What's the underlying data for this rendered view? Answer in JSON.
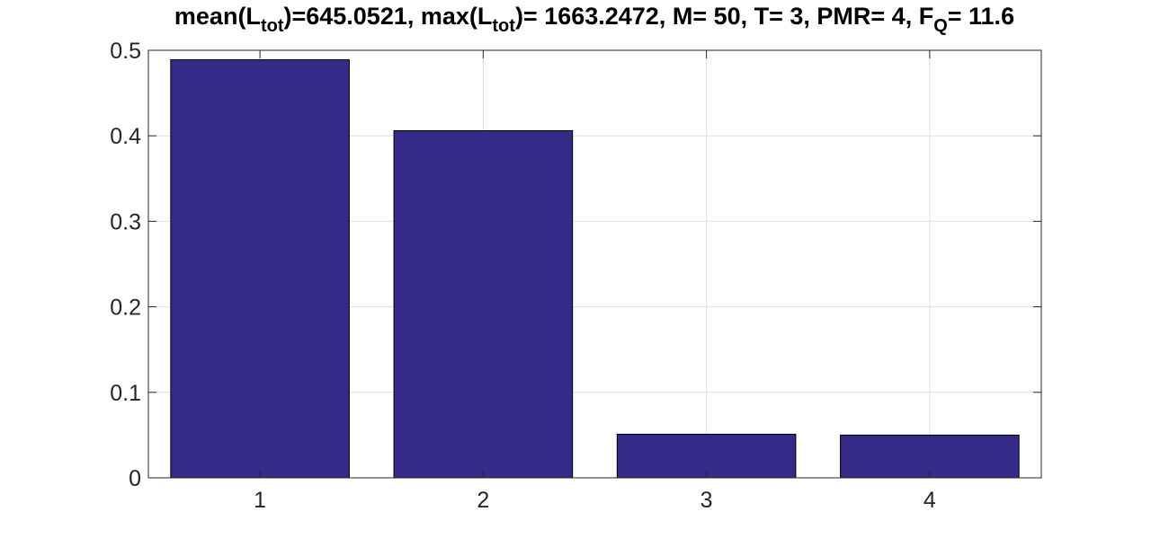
{
  "chart_data": {
    "type": "bar",
    "title_parts": [
      {
        "text": "mean(L"
      },
      {
        "text": "tot",
        "sub": true
      },
      {
        "text": ")=645.0521, max(L"
      },
      {
        "text": "tot",
        "sub": true
      },
      {
        "text": ")= 1663.2472, M= 50, T= 3, PMR= 4, F"
      },
      {
        "text": "Q",
        "sub": true
      },
      {
        "text": "= 11.6"
      }
    ],
    "categories": [
      "1",
      "2",
      "3",
      "4"
    ],
    "values": [
      0.489,
      0.406,
      0.051,
      0.05
    ],
    "xlabel": "",
    "ylabel": "",
    "ylim": [
      0,
      0.5
    ],
    "yticks": [
      0,
      0.1,
      0.2,
      0.3,
      0.4,
      0.5
    ],
    "ytick_labels": [
      "0",
      "0.1",
      "0.2",
      "0.3",
      "0.4",
      "0.5"
    ],
    "grid": true,
    "bar_color": "#352a87",
    "edge_color": "#000000"
  }
}
